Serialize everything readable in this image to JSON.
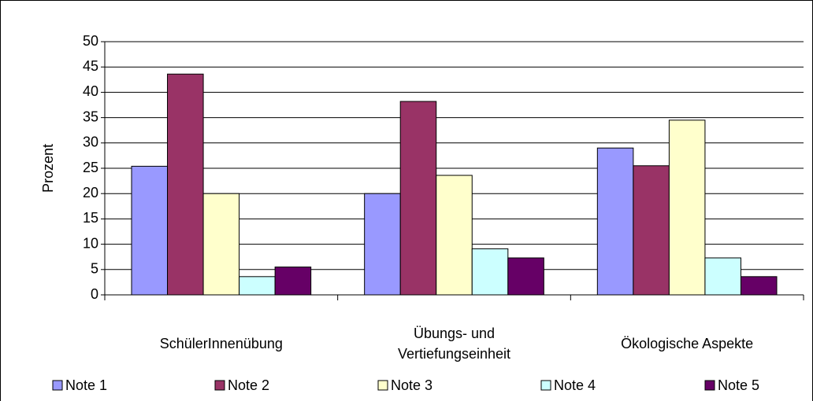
{
  "chart_data": {
    "type": "bar",
    "y_label": "Prozent",
    "categories": [
      "SchülerInnenübung",
      "Übungs- und Vertiefungseinheit",
      "Ökologische Aspekte"
    ],
    "series": [
      {
        "name": "Note 1",
        "color": "#9999ff",
        "values": [
          25.4,
          20,
          29
        ]
      },
      {
        "name": "Note 2",
        "color": "#993366",
        "values": [
          43.6,
          38.2,
          25.5
        ]
      },
      {
        "name": "Note 3",
        "color": "#ffffcc",
        "values": [
          20,
          23.6,
          34.5
        ]
      },
      {
        "name": "Note 4",
        "color": "#ccffff",
        "values": [
          3.6,
          9.1,
          7.3
        ]
      },
      {
        "name": "Note 5",
        "color": "#660066",
        "values": [
          5.5,
          7.3,
          3.6
        ]
      }
    ],
    "ylim": [
      0,
      50
    ],
    "yticks": [
      0,
      5,
      10,
      15,
      20,
      25,
      30,
      35,
      40,
      45,
      50
    ],
    "grid": true,
    "legend": "bottom"
  }
}
